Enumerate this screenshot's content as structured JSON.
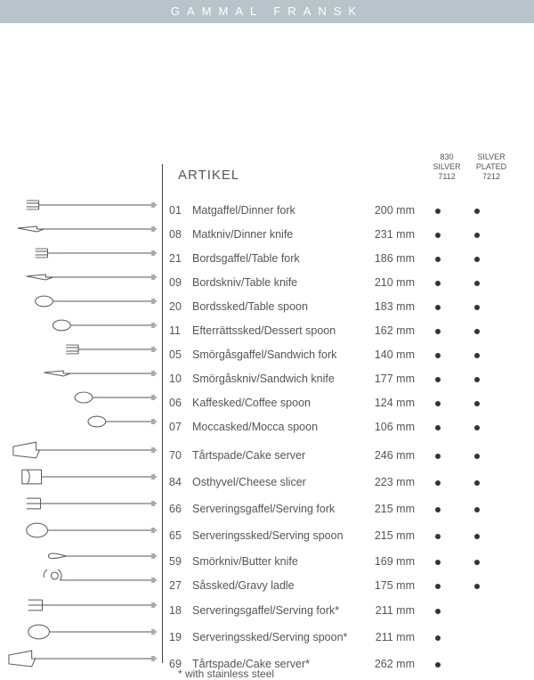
{
  "banner": {
    "title": "GAMMAL FRANSK",
    "bg": "#b9c4ca"
  },
  "heading": "ARTIKEL",
  "columns": [
    {
      "l1": "830",
      "l2": "SILVER",
      "l3": "7112"
    },
    {
      "l1": "SILVER",
      "l2": "PLATED",
      "l3": "7212"
    }
  ],
  "footnote": "* with stainless steel",
  "colors": {
    "text": "#555555",
    "dot": "#333333",
    "divider": "#444444",
    "background": "#ffffff"
  },
  "items": [
    {
      "num": "01",
      "name": "Matgaffel/Dinner fork",
      "size": "200 mm",
      "c1": true,
      "c2": true,
      "shape": "fork",
      "len": 150
    },
    {
      "num": "08",
      "name": "Matkniv/Dinner knife",
      "size": "231 mm",
      "c1": true,
      "c2": true,
      "shape": "knife",
      "len": 160
    },
    {
      "num": "21",
      "name": "Bordsgaffel/Table fork",
      "size": "186 mm",
      "c1": true,
      "c2": true,
      "shape": "fork",
      "len": 140
    },
    {
      "num": "09",
      "name": "Bordskniv/Table knife",
      "size": "210 mm",
      "c1": true,
      "c2": true,
      "shape": "knife",
      "len": 150
    },
    {
      "num": "20",
      "name": "Bordssked/Table spoon",
      "size": "183 mm",
      "c1": true,
      "c2": true,
      "shape": "spoon",
      "len": 140
    },
    {
      "num": "11",
      "name": "Efterrättssked/Dessert spoon",
      "size": "162 mm",
      "c1": true,
      "c2": true,
      "shape": "spoon",
      "len": 120
    },
    {
      "num": "05",
      "name": "Smörgåsgaffel/Sandwich fork",
      "size": "140 mm",
      "c1": true,
      "c2": true,
      "shape": "fork",
      "len": 105
    },
    {
      "num": "10",
      "name": "Smörgåskniv/Sandwich knife",
      "size": "177 mm",
      "c1": true,
      "c2": true,
      "shape": "knife",
      "len": 130
    },
    {
      "num": "06",
      "name": "Kaffesked/Coffee spoon",
      "size": "124 mm",
      "c1": true,
      "c2": true,
      "shape": "spoon",
      "len": 95
    },
    {
      "num": "07",
      "name": "Moccasked/Mocca spoon",
      "size": "106 mm",
      "c1": true,
      "c2": true,
      "shape": "spoon",
      "len": 80
    },
    {
      "num": "70",
      "name": "Tårtspade/Cake server",
      "size": "246 mm",
      "c1": true,
      "c2": true,
      "shape": "server",
      "len": 165,
      "tall": true,
      "gap": true
    },
    {
      "num": "84",
      "name": "Osthyvel/Cheese slicer",
      "size": "223 mm",
      "c1": true,
      "c2": true,
      "shape": "slicer",
      "len": 155,
      "tall": true
    },
    {
      "num": "66",
      "name": "Serveringsgaffel/Serving fork",
      "size": "215 mm",
      "c1": true,
      "c2": true,
      "shape": "sfork",
      "len": 150,
      "tall": true
    },
    {
      "num": "65",
      "name": "Serveringssked/Serving spoon",
      "size": "215 mm",
      "c1": true,
      "c2": true,
      "shape": "sspoon",
      "len": 150,
      "tall": true
    },
    {
      "num": "59",
      "name": "Smörkniv/Butter knife",
      "size": "169 mm",
      "c1": true,
      "c2": true,
      "shape": "bknife",
      "len": 125
    },
    {
      "num": "27",
      "name": "Såssked/Gravy ladle",
      "size": "175 mm",
      "c1": true,
      "c2": true,
      "shape": "ladle",
      "len": 130
    },
    {
      "num": "18",
      "name": "Serveringsgaffel/Serving fork*",
      "size": "211 mm",
      "c1": true,
      "c2": false,
      "shape": "sfork",
      "len": 148,
      "tall": true
    },
    {
      "num": "19",
      "name": "Serveringssked/Serving spoon*",
      "size": "211 mm",
      "c1": true,
      "c2": false,
      "shape": "sspoon",
      "len": 148,
      "tall": true
    },
    {
      "num": "69",
      "name": "Tårtspade/Cake server*",
      "size": "262 mm",
      "c1": true,
      "c2": false,
      "shape": "server",
      "len": 170,
      "tall": true
    }
  ]
}
